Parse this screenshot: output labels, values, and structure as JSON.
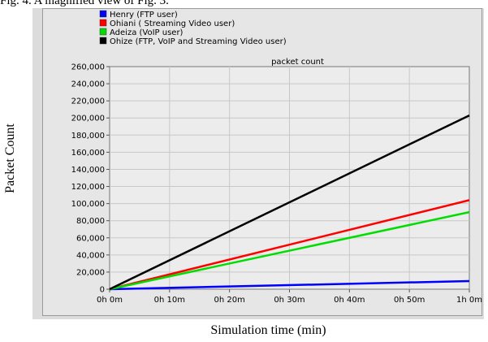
{
  "caption": "Fig. 4. A magnified view of Fig. 3.",
  "chart_data": {
    "type": "line",
    "title": "packet count",
    "xlabel": "Simulation time (min)",
    "ylabel": "Packet Count",
    "x_ticks": [
      "0h 0m",
      "0h 10m",
      "0h 20m",
      "0h 30m",
      "0h 40m",
      "0h 50m",
      "1h 0m"
    ],
    "y_ticks": [
      "0",
      "20,000",
      "40,000",
      "60,000",
      "80,000",
      "100,000",
      "120,000",
      "140,000",
      "160,000",
      "180,000",
      "200,000",
      "220,000",
      "240,000",
      "260,000"
    ],
    "xlim": [
      0,
      60
    ],
    "ylim": [
      0,
      260000
    ],
    "grid": true,
    "legend_position": "top-left",
    "series": [
      {
        "name": "Henry (FTP user)",
        "color": "#0000ff",
        "x": [
          0,
          60
        ],
        "y": [
          0,
          9500
        ]
      },
      {
        "name": "Ohiani ( Streaming Video user)",
        "color": "#ff0000",
        "x": [
          0,
          60
        ],
        "y": [
          0,
          104000
        ]
      },
      {
        "name": "Adeiza (VoIP user)",
        "color": "#00dd00",
        "x": [
          0,
          60
        ],
        "y": [
          0,
          90000
        ]
      },
      {
        "name": "Ohize (FTP, VoIP and Streaming Video user)",
        "color": "#000000",
        "x": [
          0,
          60
        ],
        "y": [
          0,
          203000
        ]
      }
    ]
  }
}
